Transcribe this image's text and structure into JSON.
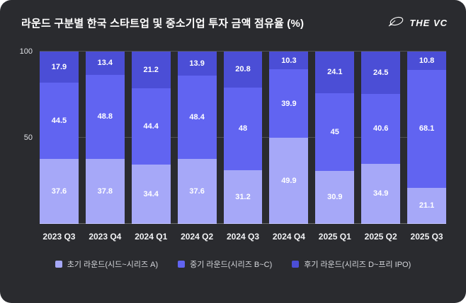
{
  "header": {
    "title": "라운드 구분별 한국 스타트업 및 중소기업 투자 금액 점유율 (%)",
    "logo_text": "THE VC"
  },
  "chart_data": {
    "type": "bar",
    "stacked": true,
    "title": "라운드 구분별 한국 스타트업 및 중소기업 투자 금액 점유율 (%)",
    "categories": [
      "2023 Q3",
      "2023 Q4",
      "2024 Q1",
      "2024 Q2",
      "2024 Q3",
      "2024 Q4",
      "2025 Q1",
      "2025 Q2",
      "2025 Q3"
    ],
    "series": [
      {
        "name": "초기 라운드(시드~시리즈 A)",
        "color": "#a6a8f8",
        "values": [
          37.6,
          37.8,
          34.4,
          37.6,
          31.2,
          49.9,
          30.9,
          34.9,
          21.1
        ]
      },
      {
        "name": "중기 라운드(시리즈 B~C)",
        "color": "#6164f1",
        "values": [
          44.5,
          48.8,
          44.4,
          48.4,
          48,
          39.9,
          45,
          40.6,
          68.1
        ]
      },
      {
        "name": "후기 라운드(시리즈 D~프리 IPO)",
        "color": "#4b4ed6",
        "values": [
          17.9,
          13.4,
          21.2,
          13.9,
          20.8,
          10.3,
          24.1,
          24.5,
          10.8
        ]
      }
    ],
    "ylim": [
      0,
      100
    ],
    "yticks": [
      50,
      100
    ],
    "legend_position": "bottom",
    "grid": true,
    "background": "#2a2b2f"
  }
}
